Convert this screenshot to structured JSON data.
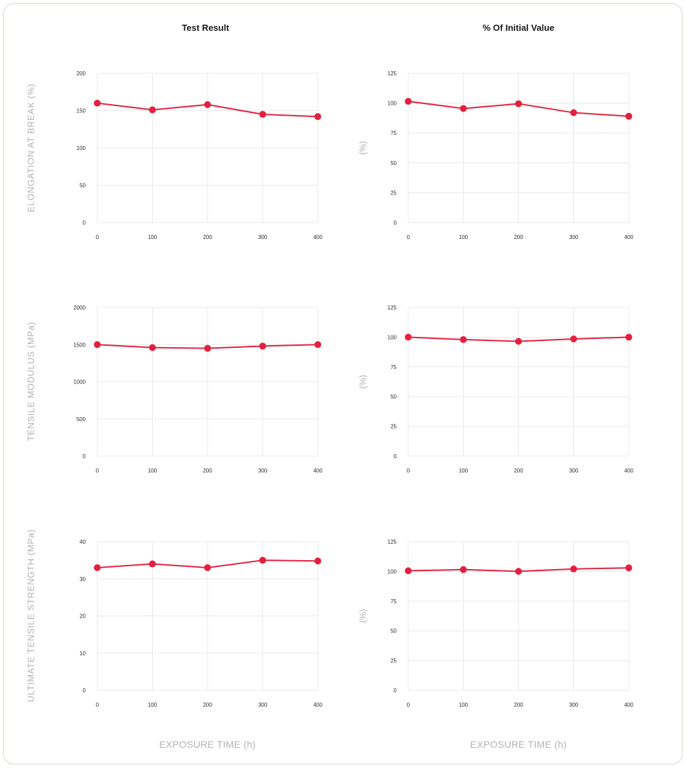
{
  "header": {
    "left_title": "Test Result",
    "right_title": "% Of Initial Value"
  },
  "rows": [
    {
      "label": "ELONGATION AT BREAK (%)"
    },
    {
      "label": "TENSILE MODULUS (MPa)"
    },
    {
      "label": "ULTIMATE TENSILE STRENGTH (MPa)"
    }
  ],
  "footer": {
    "left_xlabel": "EXPOSURE TIME (h)",
    "right_xlabel": "EXPOSURE TIME (h)"
  },
  "colors": {
    "series": "#e3203f",
    "grid": "#e8e8e8",
    "axis_text": "#b2b2b2"
  },
  "chart_data": [
    {
      "type": "line",
      "x": [
        0,
        100,
        200,
        300,
        400
      ],
      "series": [
        {
          "values": [
            160,
            151,
            158,
            145,
            142
          ]
        }
      ],
      "xlabel": "EXPOSURE TIME (h)",
      "ylabel": "ELONGATION AT BREAK (%)",
      "xlim": [
        0,
        400
      ],
      "ylim": [
        0,
        200
      ],
      "yticks": [
        0,
        50,
        100,
        150,
        200
      ],
      "xticks": [
        0,
        100,
        200,
        300,
        400
      ],
      "grid": true
    },
    {
      "type": "line",
      "x": [
        0,
        100,
        200,
        300,
        400
      ],
      "series": [
        {
          "values": [
            101.5,
            95.5,
            99.5,
            92,
            89
          ]
        }
      ],
      "xlabel": "EXPOSURE TIME (h)",
      "ylabel": "(%)",
      "xlim": [
        0,
        400
      ],
      "ylim": [
        0,
        125
      ],
      "yticks": [
        0,
        25,
        50,
        75,
        100,
        125
      ],
      "xticks": [
        0,
        100,
        200,
        300,
        400
      ],
      "grid": true
    },
    {
      "type": "line",
      "x": [
        0,
        100,
        200,
        300,
        400
      ],
      "series": [
        {
          "values": [
            1500,
            1460,
            1450,
            1480,
            1500
          ]
        }
      ],
      "xlabel": "EXPOSURE TIME (h)",
      "ylabel": "TENSILE MODULUS (MPa)",
      "xlim": [
        0,
        400
      ],
      "ylim": [
        0,
        2000
      ],
      "yticks": [
        0,
        500,
        1000,
        1500,
        2000
      ],
      "xticks": [
        0,
        100,
        200,
        300,
        400
      ],
      "grid": true
    },
    {
      "type": "line",
      "x": [
        0,
        100,
        200,
        300,
        400
      ],
      "series": [
        {
          "values": [
            100,
            98,
            96.5,
            98.5,
            100
          ]
        }
      ],
      "xlabel": "EXPOSURE TIME (h)",
      "ylabel": "(%)",
      "xlim": [
        0,
        400
      ],
      "ylim": [
        0,
        125
      ],
      "yticks": [
        0,
        25,
        50,
        75,
        100,
        125
      ],
      "xticks": [
        0,
        100,
        200,
        300,
        400
      ],
      "grid": true
    },
    {
      "type": "line",
      "x": [
        0,
        100,
        200,
        300,
        400
      ],
      "series": [
        {
          "values": [
            33,
            34,
            33,
            35,
            34.8
          ]
        }
      ],
      "xlabel": "EXPOSURE TIME (h)",
      "ylabel": "ULTIMATE TENSILE STRENGTH (MPa)",
      "xlim": [
        0,
        400
      ],
      "ylim": [
        0,
        40
      ],
      "yticks": [
        0,
        10,
        20,
        30,
        40
      ],
      "xticks": [
        0,
        100,
        200,
        300,
        400
      ],
      "grid": true
    },
    {
      "type": "line",
      "x": [
        0,
        100,
        200,
        300,
        400
      ],
      "series": [
        {
          "values": [
            100.5,
            101.5,
            100,
            102,
            103
          ]
        }
      ],
      "xlabel": "EXPOSURE TIME (h)",
      "ylabel": "(%)",
      "xlim": [
        0,
        400
      ],
      "ylim": [
        0,
        125
      ],
      "yticks": [
        0,
        25,
        50,
        75,
        100,
        125
      ],
      "xticks": [
        0,
        100,
        200,
        300,
        400
      ],
      "grid": true
    }
  ]
}
